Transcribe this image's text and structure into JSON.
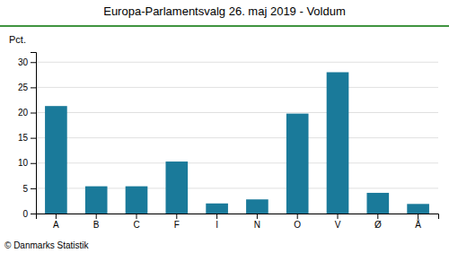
{
  "chart_data": {
    "type": "bar",
    "title": "Europa-Parlamentsvalg 26. maj 2019 - Voldum",
    "ylabel": "Pct.",
    "footer": "© Danmarks Statistik",
    "categories": [
      "A",
      "B",
      "C",
      "F",
      "I",
      "N",
      "O",
      "V",
      "Ø",
      "Å"
    ],
    "values": [
      21.3,
      5.4,
      5.4,
      10.3,
      2.0,
      2.8,
      19.8,
      28.0,
      4.1,
      1.9
    ],
    "color": "#1a7a9a",
    "ylim": [
      0,
      32
    ],
    "yticks": [
      0,
      5,
      10,
      15,
      20,
      25,
      30
    ],
    "grid": true
  }
}
